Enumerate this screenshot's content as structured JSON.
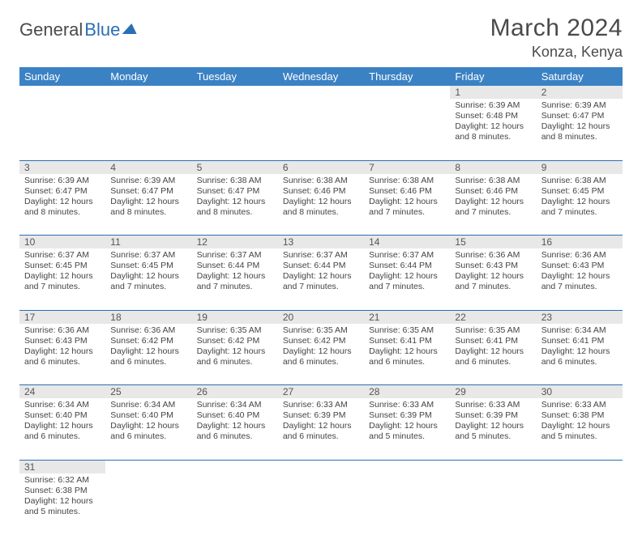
{
  "logo": {
    "text1": "General",
    "text2": "Blue"
  },
  "title": "March 2024",
  "location": "Konza, Kenya",
  "colors": {
    "header_bg": "#3b82c4",
    "header_fg": "#ffffff",
    "daynum_bg": "#e8e8e8",
    "rule": "#2a6fb5",
    "text": "#444444"
  },
  "day_headers": [
    "Sunday",
    "Monday",
    "Tuesday",
    "Wednesday",
    "Thursday",
    "Friday",
    "Saturday"
  ],
  "weeks": [
    [
      null,
      null,
      null,
      null,
      null,
      {
        "num": "1",
        "sunrise": "6:39 AM",
        "sunset": "6:48 PM",
        "daylight": "12 hours and 8 minutes."
      },
      {
        "num": "2",
        "sunrise": "6:39 AM",
        "sunset": "6:47 PM",
        "daylight": "12 hours and 8 minutes."
      }
    ],
    [
      {
        "num": "3",
        "sunrise": "6:39 AM",
        "sunset": "6:47 PM",
        "daylight": "12 hours and 8 minutes."
      },
      {
        "num": "4",
        "sunrise": "6:39 AM",
        "sunset": "6:47 PM",
        "daylight": "12 hours and 8 minutes."
      },
      {
        "num": "5",
        "sunrise": "6:38 AM",
        "sunset": "6:47 PM",
        "daylight": "12 hours and 8 minutes."
      },
      {
        "num": "6",
        "sunrise": "6:38 AM",
        "sunset": "6:46 PM",
        "daylight": "12 hours and 8 minutes."
      },
      {
        "num": "7",
        "sunrise": "6:38 AM",
        "sunset": "6:46 PM",
        "daylight": "12 hours and 7 minutes."
      },
      {
        "num": "8",
        "sunrise": "6:38 AM",
        "sunset": "6:46 PM",
        "daylight": "12 hours and 7 minutes."
      },
      {
        "num": "9",
        "sunrise": "6:38 AM",
        "sunset": "6:45 PM",
        "daylight": "12 hours and 7 minutes."
      }
    ],
    [
      {
        "num": "10",
        "sunrise": "6:37 AM",
        "sunset": "6:45 PM",
        "daylight": "12 hours and 7 minutes."
      },
      {
        "num": "11",
        "sunrise": "6:37 AM",
        "sunset": "6:45 PM",
        "daylight": "12 hours and 7 minutes."
      },
      {
        "num": "12",
        "sunrise": "6:37 AM",
        "sunset": "6:44 PM",
        "daylight": "12 hours and 7 minutes."
      },
      {
        "num": "13",
        "sunrise": "6:37 AM",
        "sunset": "6:44 PM",
        "daylight": "12 hours and 7 minutes."
      },
      {
        "num": "14",
        "sunrise": "6:37 AM",
        "sunset": "6:44 PM",
        "daylight": "12 hours and 7 minutes."
      },
      {
        "num": "15",
        "sunrise": "6:36 AM",
        "sunset": "6:43 PM",
        "daylight": "12 hours and 7 minutes."
      },
      {
        "num": "16",
        "sunrise": "6:36 AM",
        "sunset": "6:43 PM",
        "daylight": "12 hours and 7 minutes."
      }
    ],
    [
      {
        "num": "17",
        "sunrise": "6:36 AM",
        "sunset": "6:43 PM",
        "daylight": "12 hours and 6 minutes."
      },
      {
        "num": "18",
        "sunrise": "6:36 AM",
        "sunset": "6:42 PM",
        "daylight": "12 hours and 6 minutes."
      },
      {
        "num": "19",
        "sunrise": "6:35 AM",
        "sunset": "6:42 PM",
        "daylight": "12 hours and 6 minutes."
      },
      {
        "num": "20",
        "sunrise": "6:35 AM",
        "sunset": "6:42 PM",
        "daylight": "12 hours and 6 minutes."
      },
      {
        "num": "21",
        "sunrise": "6:35 AM",
        "sunset": "6:41 PM",
        "daylight": "12 hours and 6 minutes."
      },
      {
        "num": "22",
        "sunrise": "6:35 AM",
        "sunset": "6:41 PM",
        "daylight": "12 hours and 6 minutes."
      },
      {
        "num": "23",
        "sunrise": "6:34 AM",
        "sunset": "6:41 PM",
        "daylight": "12 hours and 6 minutes."
      }
    ],
    [
      {
        "num": "24",
        "sunrise": "6:34 AM",
        "sunset": "6:40 PM",
        "daylight": "12 hours and 6 minutes."
      },
      {
        "num": "25",
        "sunrise": "6:34 AM",
        "sunset": "6:40 PM",
        "daylight": "12 hours and 6 minutes."
      },
      {
        "num": "26",
        "sunrise": "6:34 AM",
        "sunset": "6:40 PM",
        "daylight": "12 hours and 6 minutes."
      },
      {
        "num": "27",
        "sunrise": "6:33 AM",
        "sunset": "6:39 PM",
        "daylight": "12 hours and 6 minutes."
      },
      {
        "num": "28",
        "sunrise": "6:33 AM",
        "sunset": "6:39 PM",
        "daylight": "12 hours and 5 minutes."
      },
      {
        "num": "29",
        "sunrise": "6:33 AM",
        "sunset": "6:39 PM",
        "daylight": "12 hours and 5 minutes."
      },
      {
        "num": "30",
        "sunrise": "6:33 AM",
        "sunset": "6:38 PM",
        "daylight": "12 hours and 5 minutes."
      }
    ],
    [
      {
        "num": "31",
        "sunrise": "6:32 AM",
        "sunset": "6:38 PM",
        "daylight": "12 hours and 5 minutes."
      },
      null,
      null,
      null,
      null,
      null,
      null
    ]
  ],
  "labels": {
    "sunrise": "Sunrise:",
    "sunset": "Sunset:",
    "daylight": "Daylight:"
  }
}
